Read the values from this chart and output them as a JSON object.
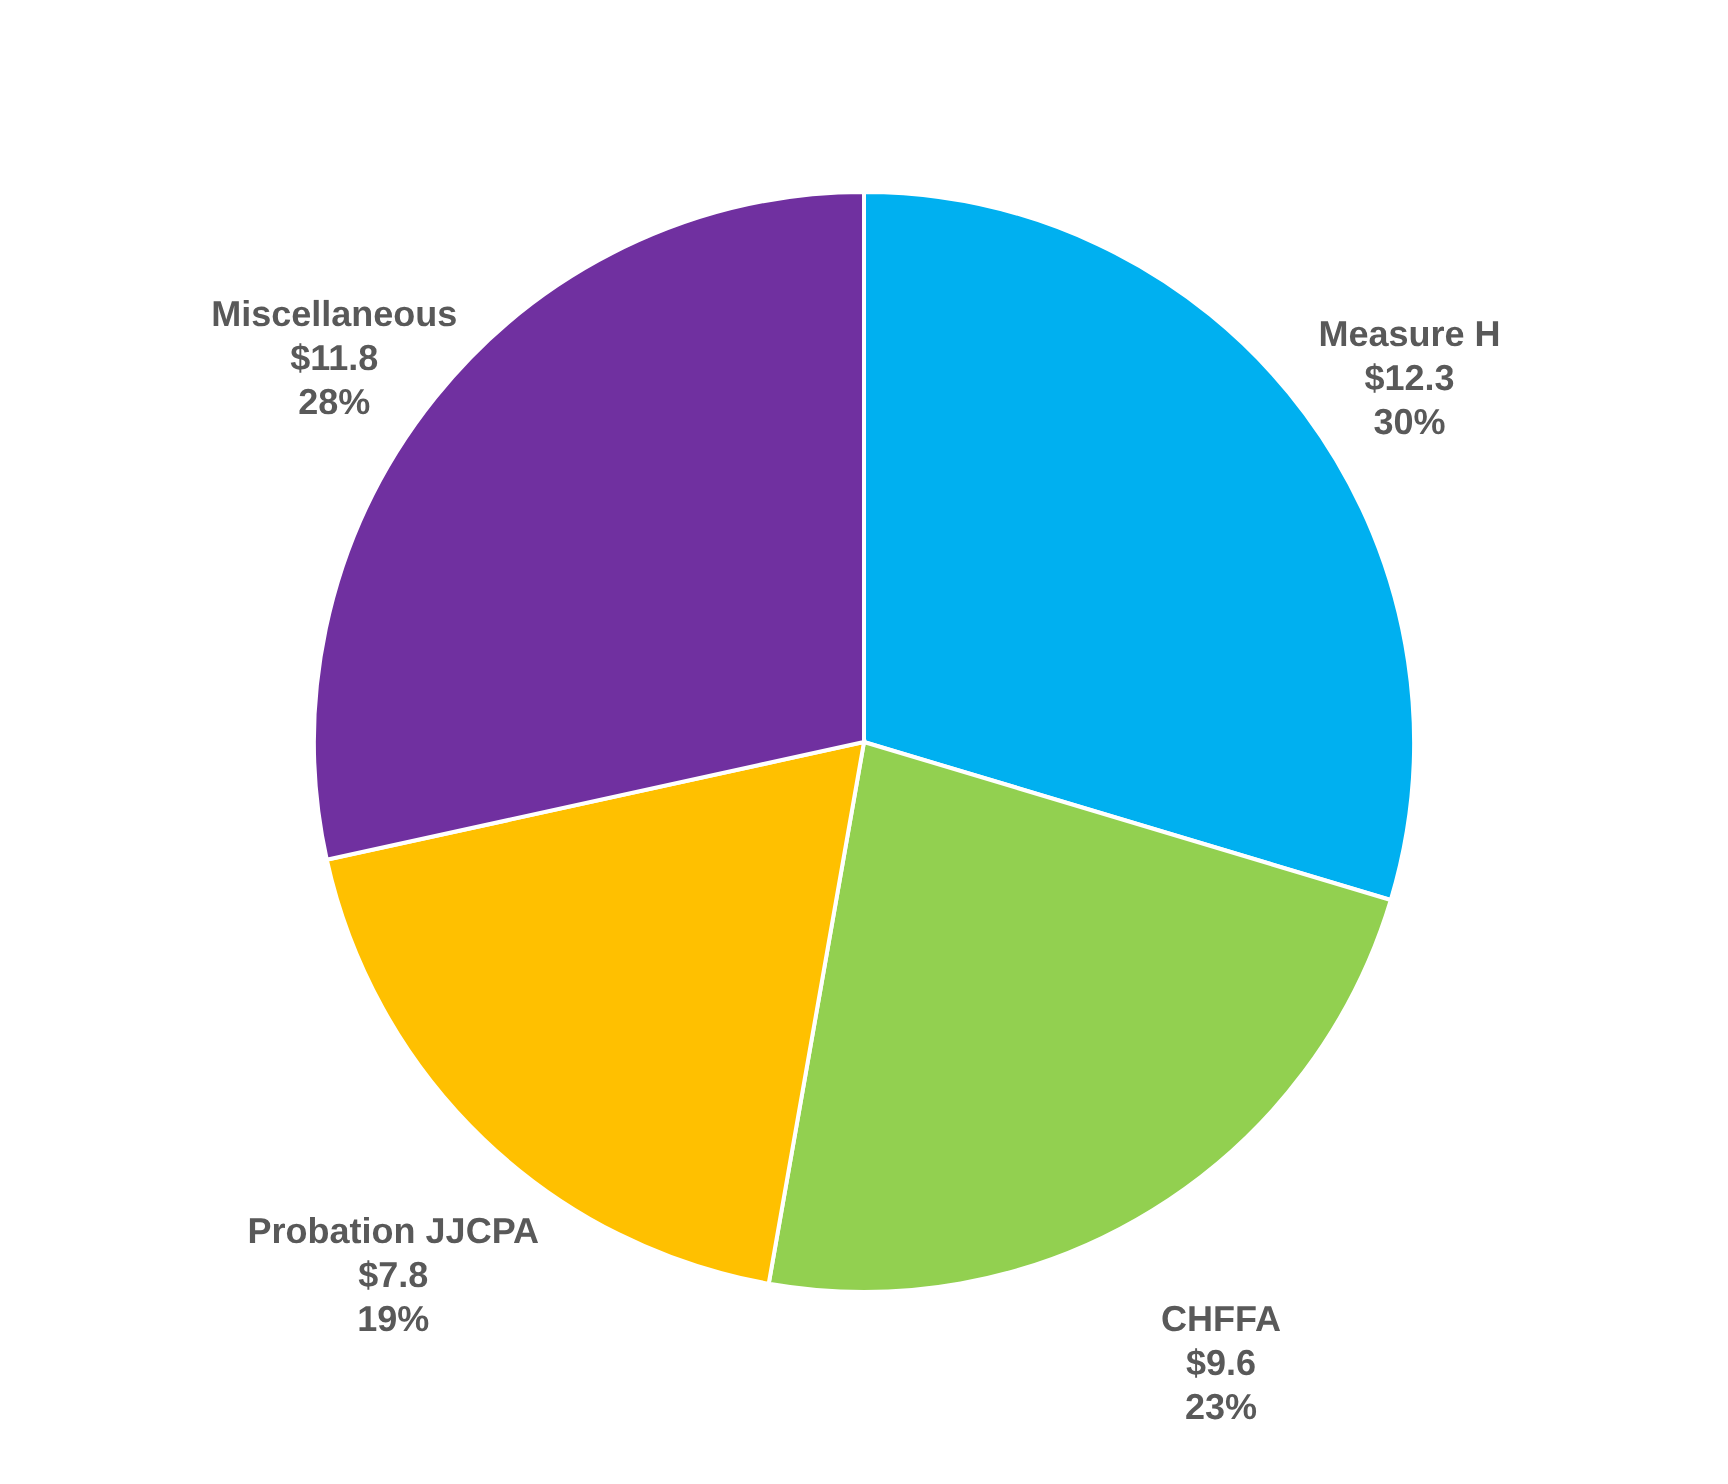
{
  "chart_data": {
    "type": "pie",
    "categories": [
      "Measure H",
      "CHFFA",
      "Probation JJCPA",
      "Miscellaneous"
    ],
    "values": [
      12.3,
      9.6,
      7.8,
      11.8
    ],
    "colors": [
      "#00b0f0",
      "#92d050",
      "#ffc000",
      "#7030a0"
    ],
    "value_labels": [
      "$12.3\n30%",
      "$9.6\n23%",
      "$7.8\n19%",
      "$11.8\n28%"
    ]
  }
}
